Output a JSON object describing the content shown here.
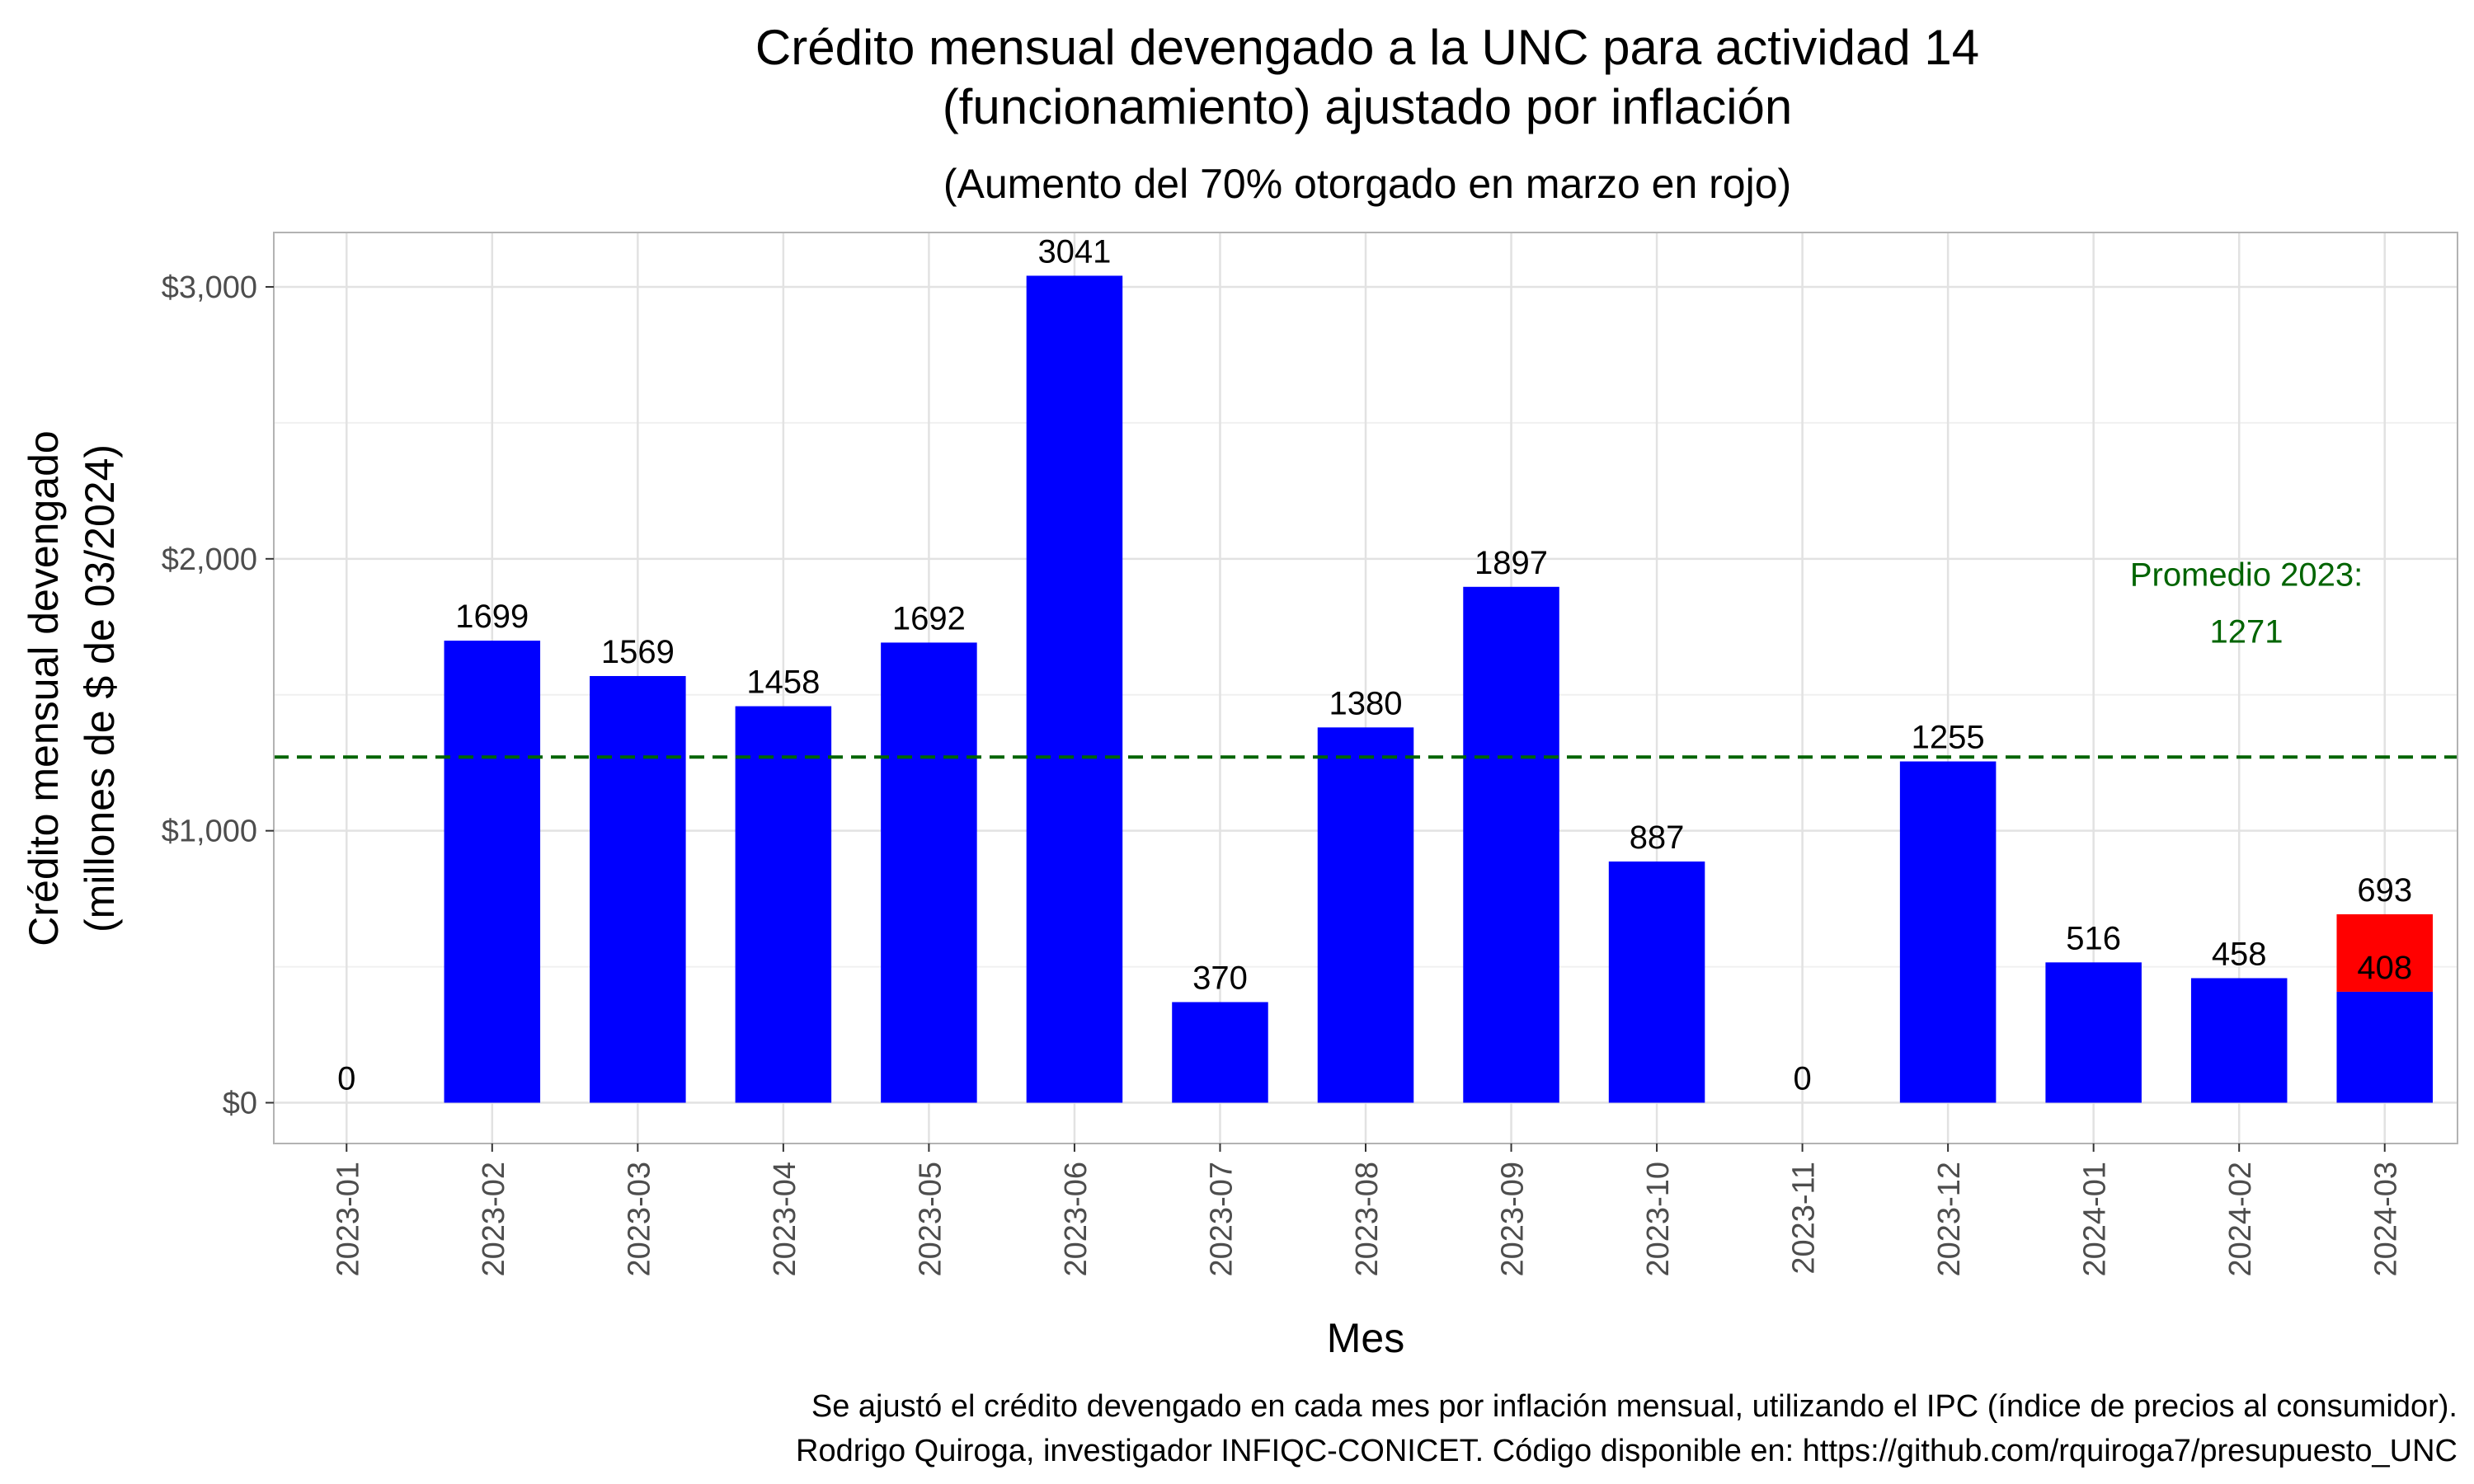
{
  "chart_data": {
    "type": "bar",
    "title_line1": "Crédito mensual devengado a la UNC para actividad 14",
    "title_line2": "(funcionamiento) ajustado por inflación",
    "subtitle": "(Aumento del 70% otorgado en marzo en rojo)",
    "xlabel": "Mes",
    "ylabel_line1": "Crédito mensual devengado",
    "ylabel_line2": "(millones de $ de 03/2024)",
    "ylim": [
      -150,
      3200
    ],
    "yticks": [
      0,
      1000,
      2000,
      3000
    ],
    "ytick_labels": [
      "$0",
      "$1,000",
      "$2,000",
      "$3,000"
    ],
    "categories": [
      "2023-01",
      "2023-02",
      "2023-03",
      "2023-04",
      "2023-05",
      "2023-06",
      "2023-07",
      "2023-08",
      "2023-09",
      "2023-10",
      "2023-11",
      "2023-12",
      "2024-01",
      "2024-02",
      "2024-03"
    ],
    "series": [
      {
        "name": "base",
        "color": "#0000ff",
        "values": [
          0,
          1699,
          1569,
          1458,
          1692,
          3041,
          370,
          1380,
          1897,
          887,
          0,
          1255,
          516,
          458,
          408
        ]
      },
      {
        "name": "aumento",
        "color": "#ff0000",
        "values": [
          0,
          0,
          0,
          0,
          0,
          0,
          0,
          0,
          0,
          0,
          0,
          0,
          0,
          0,
          285
        ]
      }
    ],
    "total_labels": [
      "0",
      "1699",
      "1569",
      "1458",
      "1692",
      "3041",
      "370",
      "1380",
      "1897",
      "887",
      "0",
      "1255",
      "516",
      "458",
      "693"
    ],
    "inner_label": {
      "category": "2024-03",
      "value": 408,
      "text": "408"
    },
    "mean_line": {
      "value": 1271,
      "color": "#006400",
      "label_line1": "Promedio 2023:",
      "label_line2": "1271"
    },
    "caption_line1": "Se ajustó el crédito devengado en cada mes por inflación mensual, utilizando el IPC (índice de precios al consumidor).",
    "caption_line2": "Rodrigo Quiroga, investigador INFIQC-CONICET. Código disponible en: https://github.com/rquiroga7/presupuesto_UNC",
    "grid": true,
    "legend": "none"
  }
}
